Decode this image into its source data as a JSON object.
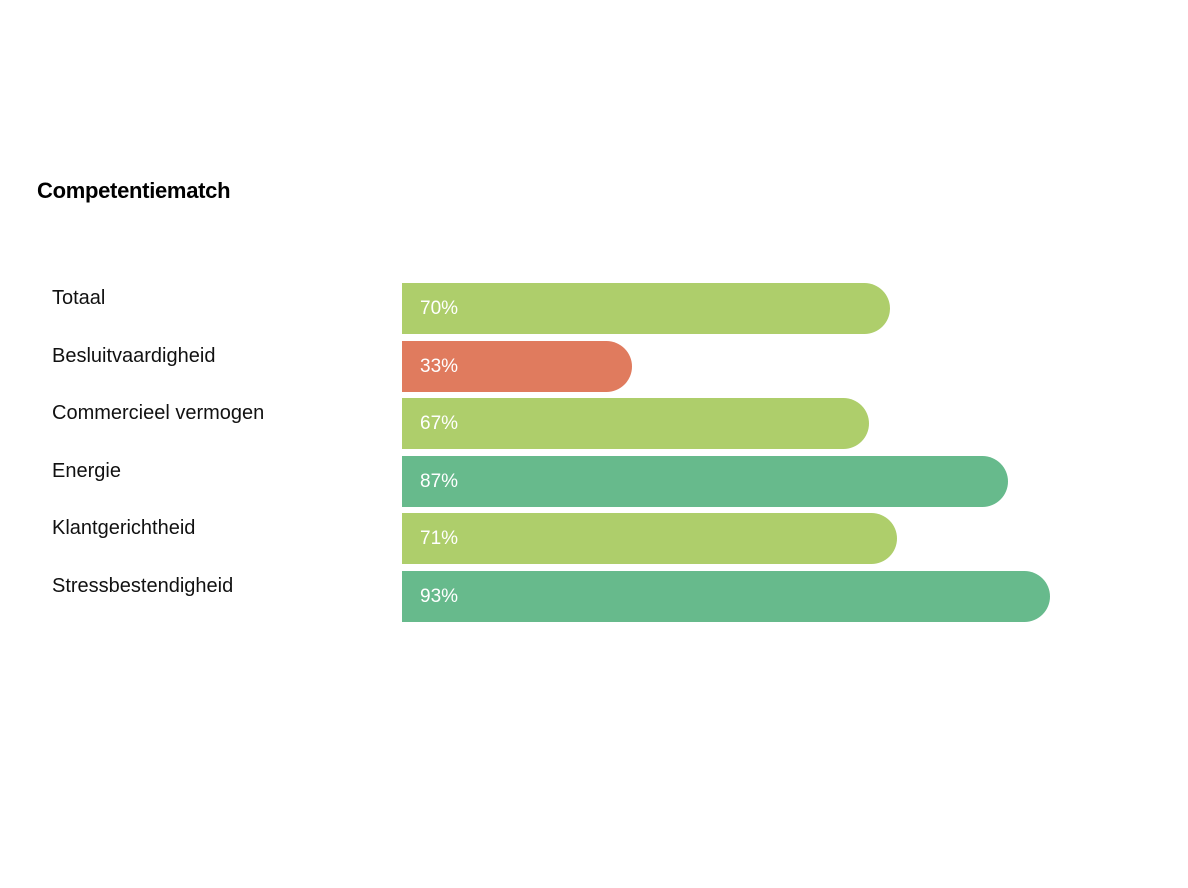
{
  "chart_data": {
    "type": "bar",
    "orientation": "horizontal",
    "title": "Competentiematch",
    "categories": [
      "Totaal",
      "Besluitvaardigheid",
      "Commercieel vermogen",
      "Energie",
      "Klantgerichtheid",
      "Stressbestendigheid"
    ],
    "values": [
      70,
      33,
      67,
      87,
      71,
      93
    ],
    "value_labels": [
      "70%",
      "33%",
      "67%",
      "87%",
      "71%",
      "93%"
    ],
    "xlim": [
      0,
      100
    ],
    "colors": [
      "#AECE6B",
      "#E07B5E",
      "#AECE6B",
      "#67BA8C",
      "#AECE6B",
      "#67BA8C"
    ],
    "xlabel": "",
    "ylabel": ""
  }
}
